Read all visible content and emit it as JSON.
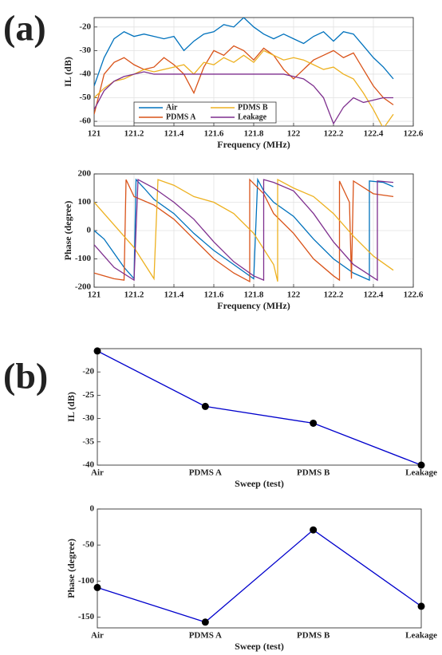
{
  "panel_labels": [
    "(a)",
    "(b)"
  ],
  "chart_data": [
    {
      "type": "line",
      "xlabel": "Frequency (MHz)",
      "ylabel": "IL (dB)",
      "xlim": [
        121,
        122.6
      ],
      "xticks": [
        121,
        121.2,
        121.4,
        121.6,
        121.8,
        122,
        122.2,
        122.4,
        122.6
      ],
      "ylim": [
        -62,
        -16
      ],
      "yticks": [
        -60,
        -50,
        -40,
        -30,
        -20
      ],
      "grid": true,
      "legend": "lower left",
      "x": [
        121,
        121.05,
        121.1,
        121.15,
        121.2,
        121.25,
        121.3,
        121.35,
        121.4,
        121.45,
        121.5,
        121.55,
        121.6,
        121.65,
        121.7,
        121.75,
        121.8,
        121.85,
        121.9,
        121.95,
        122,
        122.05,
        122.1,
        122.15,
        122.2,
        122.25,
        122.3,
        122.35,
        122.4,
        122.45,
        122.5
      ],
      "series": [
        {
          "name": "Air",
          "color": "#0072BD",
          "values": [
            -45,
            -33,
            -25,
            -22,
            -24,
            -23,
            -24,
            -25,
            -24,
            -30,
            -26,
            -23,
            -22,
            -19,
            -20,
            -16,
            -20,
            -23,
            -25,
            -23,
            -25,
            -27,
            -24,
            -22,
            -26,
            -22,
            -23,
            -28,
            -33,
            -37,
            -42
          ]
        },
        {
          "name": "PDMS A",
          "color": "#D95319",
          "values": [
            -57,
            -40,
            -35,
            -33,
            -36,
            -38,
            -37,
            -33,
            -36,
            -40,
            -48,
            -37,
            -30,
            -32,
            -28,
            -30,
            -34,
            -29,
            -32,
            -38,
            -42,
            -38,
            -34,
            -32,
            -30,
            -33,
            -31,
            -38,
            -45,
            -50,
            -53
          ]
        },
        {
          "name": "PDMS B",
          "color": "#EDB120",
          "values": [
            -50,
            -46,
            -43,
            -42,
            -40,
            -38,
            -39,
            -38,
            -37,
            -36,
            -40,
            -35,
            -36,
            -33,
            -35,
            -32,
            -35,
            -30,
            -32,
            -34,
            -33,
            -34,
            -36,
            -38,
            -37,
            -40,
            -42,
            -48,
            -55,
            -63,
            -57
          ]
        },
        {
          "name": "Leakage",
          "color": "#7E2F8E",
          "values": [
            -55,
            -47,
            -43,
            -41,
            -40,
            -39,
            -40,
            -40,
            -40,
            -40,
            -40,
            -40,
            -40,
            -40,
            -40,
            -40,
            -40,
            -40,
            -40,
            -40,
            -41,
            -42,
            -45,
            -50,
            -61,
            -54,
            -50,
            -52,
            -51,
            -50,
            -50
          ]
        }
      ]
    },
    {
      "type": "line",
      "xlabel": "Frequency (MHz)",
      "ylabel": "Phase (degree)",
      "xlim": [
        121,
        122.6
      ],
      "xticks": [
        121,
        121.2,
        121.4,
        121.6,
        121.8,
        122,
        122.2,
        122.4,
        122.6
      ],
      "ylim": [
        -200,
        200
      ],
      "yticks": [
        -200,
        -100,
        0,
        100,
        200
      ],
      "grid": true,
      "series": [
        {
          "name": "Air",
          "color": "#0072BD",
          "x": [
            121,
            121.05,
            121.1,
            121.15,
            121.2,
            121.21,
            121.25,
            121.3,
            121.4,
            121.5,
            121.6,
            121.7,
            121.8,
            121.82,
            121.85,
            121.9,
            122,
            122.1,
            122.2,
            122.3,
            122.38,
            122.38,
            122.45,
            122.5
          ],
          "values": [
            0,
            -30,
            -80,
            -130,
            -170,
            180,
            150,
            110,
            60,
            -10,
            -70,
            -120,
            -170,
            180,
            140,
            100,
            50,
            -30,
            -100,
            -150,
            -175,
            175,
            170,
            155
          ]
        },
        {
          "name": "PDMS A",
          "color": "#D95319",
          "x": [
            121,
            121.1,
            121.15,
            121.16,
            121.2,
            121.3,
            121.4,
            121.5,
            121.6,
            121.7,
            121.78,
            121.78,
            121.85,
            121.9,
            122,
            122.1,
            122.2,
            122.23,
            122.23,
            122.28,
            122.29,
            122.3,
            122.4,
            122.5
          ],
          "values": [
            -150,
            -170,
            -175,
            180,
            120,
            90,
            40,
            -30,
            -100,
            -150,
            -180,
            180,
            130,
            60,
            -10,
            -100,
            -160,
            -175,
            175,
            100,
            -170,
            175,
            130,
            120
          ]
        },
        {
          "name": "PDMS B",
          "color": "#EDB120",
          "x": [
            121,
            121.1,
            121.2,
            121.3,
            121.32,
            121.4,
            121.5,
            121.6,
            121.7,
            121.8,
            121.9,
            121.92,
            121.92,
            122,
            122.1,
            122.2,
            122.3,
            122.4,
            122.5
          ],
          "values": [
            100,
            20,
            -60,
            -170,
            180,
            160,
            120,
            100,
            60,
            -10,
            -120,
            -180,
            180,
            150,
            120,
            60,
            -20,
            -90,
            -140
          ]
        },
        {
          "name": "Leakage",
          "color": "#7E2F8E",
          "x": [
            121,
            121.1,
            121.2,
            121.22,
            121.3,
            121.4,
            121.5,
            121.6,
            121.7,
            121.8,
            121.85,
            121.85,
            121.9,
            122,
            122.1,
            122.2,
            122.3,
            122.42,
            122.42,
            122.5
          ],
          "values": [
            -50,
            -130,
            -175,
            180,
            150,
            100,
            40,
            -40,
            -110,
            -160,
            -175,
            180,
            170,
            140,
            60,
            -40,
            -120,
            -175,
            175,
            170
          ]
        }
      ]
    },
    {
      "type": "line",
      "xlabel": "Sweep (test)",
      "ylabel": "IL (dB)",
      "categories": [
        "Air",
        "PDMS A",
        "PDMS B",
        "Leakage"
      ],
      "values": [
        -15.5,
        -27.4,
        -31,
        -40
      ],
      "color": "#0000CC",
      "marker_color": "#000000",
      "ylim": [
        -40,
        -15
      ],
      "yticks": [
        -40,
        -35,
        -30,
        -25,
        -20
      ]
    },
    {
      "type": "line",
      "xlabel": "Sweep (test)",
      "ylabel": "Phase (degree)",
      "categories": [
        "Air",
        "PDMS A",
        "PDMS B",
        "Leakage"
      ],
      "values": [
        -109,
        -157,
        -29,
        -135
      ],
      "color": "#0000CC",
      "marker_color": "#000000",
      "ylim": [
        -165,
        0
      ],
      "yticks": [
        -150,
        -100,
        -50,
        0
      ]
    }
  ]
}
